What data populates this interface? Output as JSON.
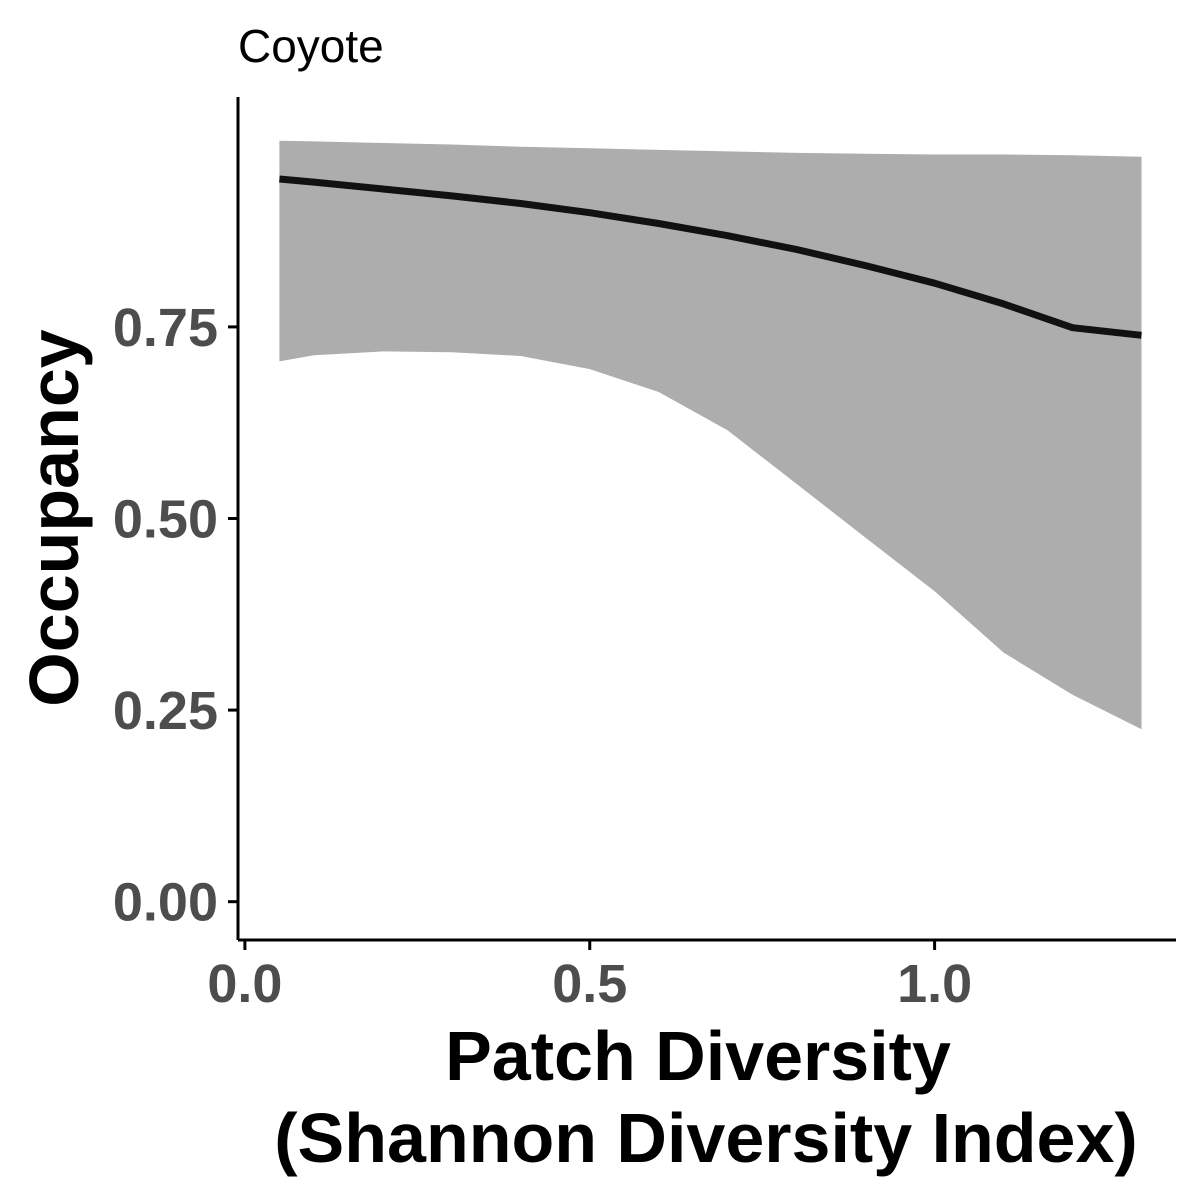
{
  "chart_data": {
    "type": "line",
    "title": "Coyote",
    "xlabel": [
      "Patch Diversity",
      "(Shannon Diversity Index)"
    ],
    "ylabel": "Occupancy",
    "xlim": [
      -0.01,
      1.35
    ],
    "ylim": [
      -0.05,
      1.05
    ],
    "x_ticks": [
      0.0,
      0.5,
      1.0
    ],
    "x_tick_labels": [
      "0.0",
      "0.5",
      "1.0"
    ],
    "y_ticks": [
      0.0,
      0.25,
      0.5,
      0.75
    ],
    "y_tick_labels": [
      "0.00",
      "0.25",
      "0.50",
      "0.75"
    ],
    "grid": false,
    "line_color": "#111111",
    "ribbon_color": "#adadad",
    "series": [
      {
        "x": [
          0.05,
          0.1,
          0.2,
          0.3,
          0.4,
          0.5,
          0.6,
          0.7,
          0.8,
          0.9,
          1.0,
          1.1,
          1.2,
          1.3
        ],
        "y": [
          0.943,
          0.939,
          0.93,
          0.921,
          0.911,
          0.899,
          0.885,
          0.869,
          0.851,
          0.83,
          0.807,
          0.78,
          0.749,
          0.739
        ],
        "lower": [
          0.705,
          0.713,
          0.718,
          0.717,
          0.712,
          0.695,
          0.665,
          0.615,
          0.545,
          0.475,
          0.405,
          0.325,
          0.27,
          0.225
        ],
        "upper": [
          0.993,
          0.992,
          0.99,
          0.988,
          0.985,
          0.983,
          0.981,
          0.979,
          0.977,
          0.976,
          0.975,
          0.975,
          0.974,
          0.972
        ]
      }
    ]
  }
}
